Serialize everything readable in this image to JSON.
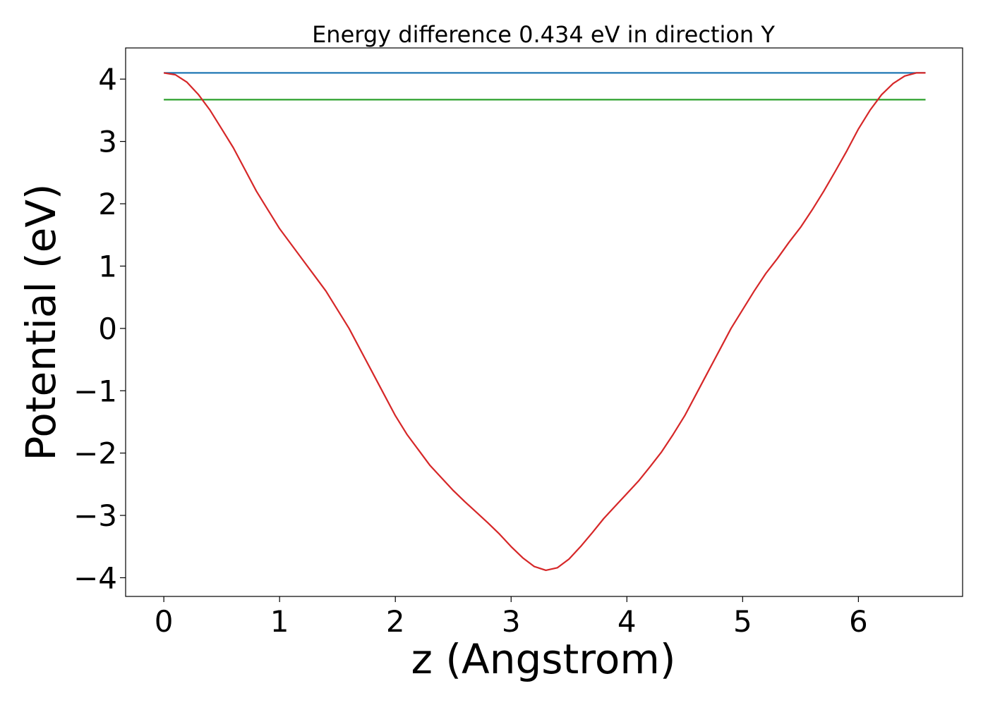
{
  "chart_data": {
    "type": "line",
    "title": "Energy difference 0.434 eV in direction Y",
    "xlabel": "z (Angstrom)",
    "ylabel": "Potential (eV)",
    "xlim": [
      -0.33,
      6.9
    ],
    "ylim": [
      -4.3,
      4.5
    ],
    "xticks": [
      0,
      1,
      2,
      3,
      4,
      5,
      6
    ],
    "yticks": [
      -4,
      -3,
      -2,
      -1,
      0,
      1,
      2,
      3,
      4
    ],
    "ytick_labels": [
      "−4",
      "−3",
      "−2",
      "−1",
      "0",
      "1",
      "2",
      "3",
      "4"
    ],
    "grid": false,
    "series": [
      {
        "color": "#1f77b4",
        "x": [
          0,
          6.58
        ],
        "y": [
          4.1,
          4.1
        ]
      },
      {
        "color": "#2ca02c",
        "x": [
          0,
          6.58
        ],
        "y": [
          3.67,
          3.67
        ]
      },
      {
        "color": "#d62728",
        "x": [
          0,
          0.1,
          0.2,
          0.3,
          0.4,
          0.5,
          0.6,
          0.7,
          0.8,
          0.9,
          1.0,
          1.1,
          1.2,
          1.3,
          1.4,
          1.5,
          1.6,
          1.7,
          1.8,
          1.9,
          2.0,
          2.1,
          2.2,
          2.3,
          2.4,
          2.5,
          2.6,
          2.7,
          2.8,
          2.9,
          3.0,
          3.1,
          3.2,
          3.3,
          3.4,
          3.5,
          3.6,
          3.7,
          3.8,
          3.9,
          4.0,
          4.1,
          4.2,
          4.3,
          4.4,
          4.5,
          4.6,
          4.7,
          4.8,
          4.9,
          5.0,
          5.1,
          5.2,
          5.3,
          5.4,
          5.5,
          5.6,
          5.7,
          5.8,
          5.9,
          6.0,
          6.1,
          6.2,
          6.3,
          6.4,
          6.5,
          6.58
        ],
        "y": [
          4.1,
          4.07,
          3.95,
          3.75,
          3.5,
          3.2,
          2.9,
          2.55,
          2.2,
          1.9,
          1.6,
          1.35,
          1.1,
          0.85,
          0.6,
          0.3,
          0.0,
          -0.35,
          -0.7,
          -1.05,
          -1.4,
          -1.7,
          -1.95,
          -2.2,
          -2.4,
          -2.6,
          -2.78,
          -2.95,
          -3.12,
          -3.3,
          -3.5,
          -3.68,
          -3.82,
          -3.88,
          -3.84,
          -3.7,
          -3.5,
          -3.28,
          -3.05,
          -2.85,
          -2.65,
          -2.45,
          -2.22,
          -1.98,
          -1.7,
          -1.4,
          -1.05,
          -0.7,
          -0.35,
          0.0,
          0.3,
          0.6,
          0.88,
          1.12,
          1.38,
          1.62,
          1.9,
          2.2,
          2.52,
          2.85,
          3.2,
          3.5,
          3.75,
          3.93,
          4.05,
          4.1,
          4.1
        ]
      }
    ]
  }
}
